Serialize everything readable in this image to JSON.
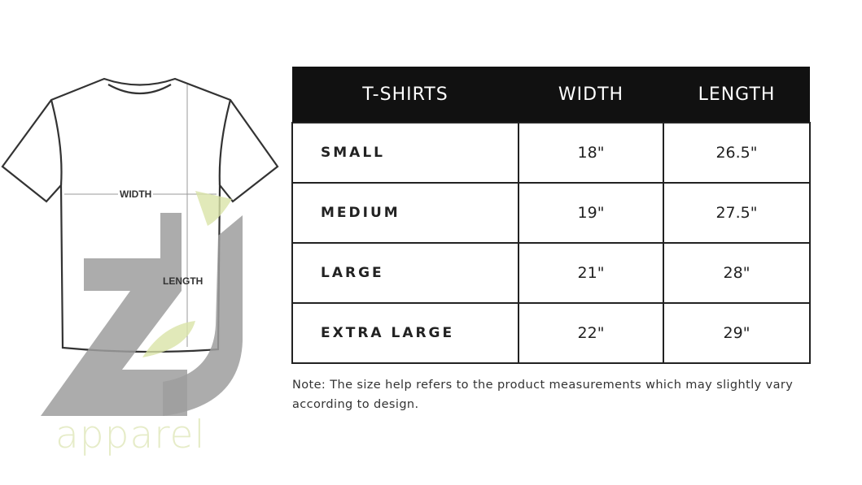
{
  "diagram": {
    "width_label": "WIDTH",
    "length_label": "LENGTH"
  },
  "watermark": {
    "brand": "ZJ apparel",
    "text": "apparel",
    "colors": {
      "mark": "#9e9e9e",
      "leaf": "#d9e3a8",
      "text": "#e6ecc8"
    }
  },
  "table": {
    "headers": [
      "T-SHIRTS",
      "WIDTH",
      "LENGTH"
    ],
    "rows": [
      {
        "size": "SMALL",
        "width": "18\"",
        "length": "26.5\""
      },
      {
        "size": "MEDIUM",
        "width": "19\"",
        "length": "27.5\""
      },
      {
        "size": "LARGE",
        "width": "21\"",
        "length": "28\""
      },
      {
        "size": "EXTRA LARGE",
        "width": "22\"",
        "length": "29\""
      }
    ]
  },
  "note": "Note: The size help refers to the product measurements which may slightly vary according to design."
}
